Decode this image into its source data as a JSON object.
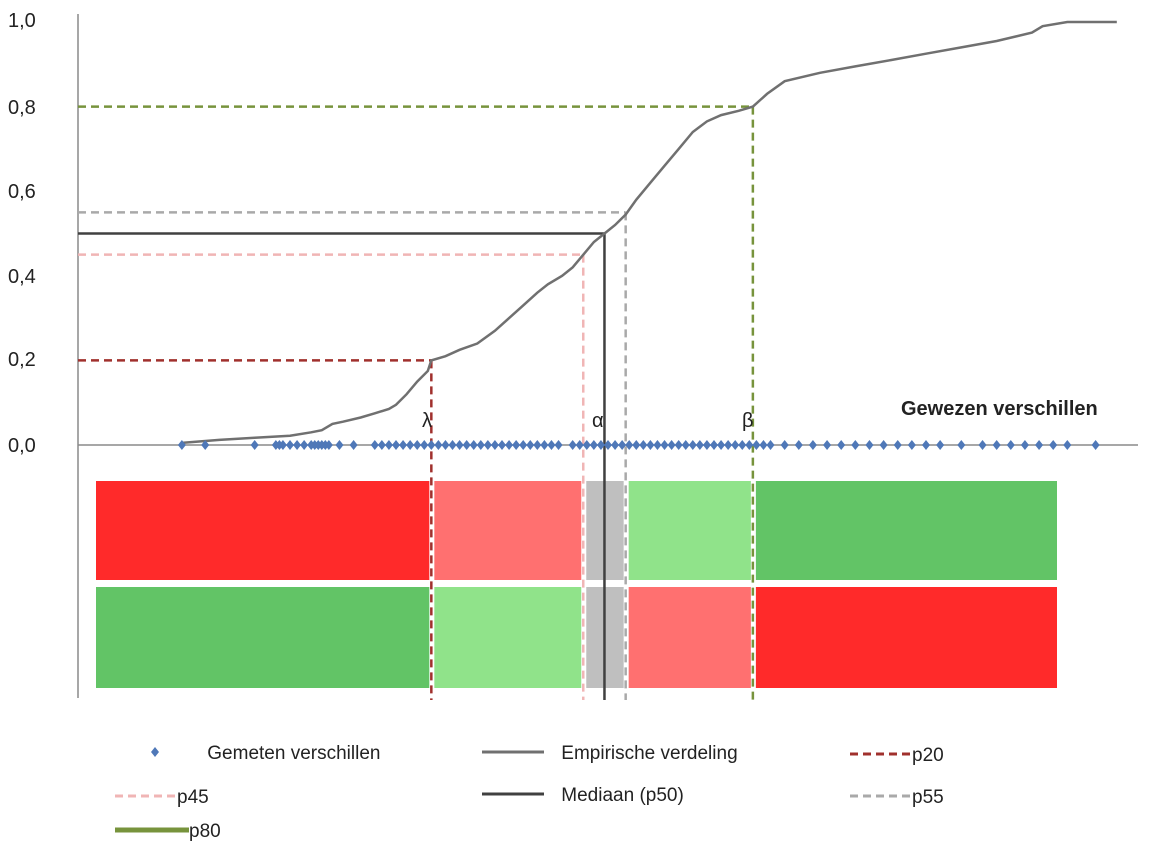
{
  "chart_data": {
    "type": "line",
    "x_axis_title": "Gewezen verschillen",
    "y_ticks": [
      "1,0",
      "0,8",
      "0,6",
      "0,4",
      "0,2",
      "0,0"
    ],
    "ylim": [
      0,
      1
    ],
    "xlim": [
      -0.5,
      1.0
    ],
    "greek_labels": {
      "lambda": "λ",
      "alpha": "α",
      "beta": "β"
    },
    "series": [
      {
        "name": "Empirische verdeling",
        "color": "#707070",
        "points": [
          [
            -0.353,
            0.005
          ],
          [
            -0.3,
            0.012
          ],
          [
            -0.25,
            0.017
          ],
          [
            -0.2,
            0.022
          ],
          [
            -0.17,
            0.03
          ],
          [
            -0.155,
            0.035
          ],
          [
            -0.14,
            0.05
          ],
          [
            -0.125,
            0.055
          ],
          [
            -0.1,
            0.065
          ],
          [
            -0.08,
            0.075
          ],
          [
            -0.06,
            0.085
          ],
          [
            -0.05,
            0.095
          ],
          [
            -0.035,
            0.12
          ],
          [
            -0.02,
            0.15
          ],
          [
            -0.005,
            0.175
          ],
          [
            0.0,
            0.2
          ],
          [
            0.02,
            0.21
          ],
          [
            0.04,
            0.225
          ],
          [
            0.065,
            0.24
          ],
          [
            0.09,
            0.27
          ],
          [
            0.11,
            0.3
          ],
          [
            0.13,
            0.33
          ],
          [
            0.15,
            0.36
          ],
          [
            0.165,
            0.38
          ],
          [
            0.185,
            0.4
          ],
          [
            0.2,
            0.42
          ],
          [
            0.215,
            0.45
          ],
          [
            0.23,
            0.48
          ],
          [
            0.245,
            0.5
          ],
          [
            0.26,
            0.52
          ],
          [
            0.275,
            0.545
          ],
          [
            0.29,
            0.58
          ],
          [
            0.31,
            0.62
          ],
          [
            0.33,
            0.66
          ],
          [
            0.35,
            0.7
          ],
          [
            0.37,
            0.74
          ],
          [
            0.39,
            0.765
          ],
          [
            0.41,
            0.78
          ],
          [
            0.435,
            0.79
          ],
          [
            0.455,
            0.8
          ],
          [
            0.475,
            0.83
          ],
          [
            0.5,
            0.86
          ],
          [
            0.55,
            0.88
          ],
          [
            0.6,
            0.895
          ],
          [
            0.65,
            0.91
          ],
          [
            0.7,
            0.925
          ],
          [
            0.75,
            0.94
          ],
          [
            0.8,
            0.955
          ],
          [
            0.85,
            0.975
          ],
          [
            0.865,
            0.99
          ],
          [
            0.9,
            1.0
          ],
          [
            0.97,
            1.0
          ]
        ]
      },
      {
        "name": "Gemeten  verschillen",
        "color": "#4f78b8",
        "x": [
          -0.353,
          -0.32,
          -0.25,
          -0.22,
          -0.215,
          -0.21,
          -0.2,
          -0.19,
          -0.18,
          -0.17,
          -0.165,
          -0.16,
          -0.155,
          -0.15,
          -0.145,
          -0.13,
          -0.11,
          -0.08,
          -0.07,
          -0.06,
          -0.05,
          -0.04,
          -0.03,
          -0.02,
          -0.01,
          0.0,
          0.01,
          0.02,
          0.03,
          0.04,
          0.05,
          0.06,
          0.07,
          0.08,
          0.09,
          0.1,
          0.11,
          0.12,
          0.13,
          0.14,
          0.15,
          0.16,
          0.17,
          0.18,
          0.2,
          0.21,
          0.22,
          0.23,
          0.24,
          0.25,
          0.26,
          0.27,
          0.28,
          0.29,
          0.3,
          0.31,
          0.32,
          0.33,
          0.34,
          0.35,
          0.36,
          0.37,
          0.38,
          0.39,
          0.4,
          0.41,
          0.42,
          0.43,
          0.44,
          0.45,
          0.46,
          0.47,
          0.48,
          0.5,
          0.52,
          0.54,
          0.56,
          0.58,
          0.6,
          0.62,
          0.64,
          0.66,
          0.68,
          0.7,
          0.72,
          0.75,
          0.78,
          0.8,
          0.82,
          0.84,
          0.86,
          0.88,
          0.9,
          0.94
        ]
      }
    ],
    "percentiles": [
      {
        "name": "p20",
        "p": 0.2,
        "x": 0.0,
        "color": "#a0302d"
      },
      {
        "name": "p45",
        "p": 0.45,
        "x": 0.215,
        "color": "#f0b5b5"
      },
      {
        "name": "Mediaan (p50)",
        "p": 0.5,
        "x": 0.245,
        "color": "#404040"
      },
      {
        "name": "p55",
        "p": 0.55,
        "x": 0.275,
        "color": "#a9a9a9"
      },
      {
        "name": "p80",
        "p": 0.8,
        "x": 0.455,
        "color": "#77933c"
      }
    ],
    "bands": {
      "top": [
        {
          "from": -0.5,
          "to": 0.0,
          "color": "#ff2a2a"
        },
        {
          "from": 0.0,
          "to": 0.215,
          "color": "#ff7070"
        },
        {
          "from": 0.215,
          "to": 0.275,
          "color": "#bfbfbf"
        },
        {
          "from": 0.275,
          "to": 0.455,
          "color": "#90e38a"
        },
        {
          "from": 0.455,
          "to": 0.8,
          "color": "#62c466"
        }
      ],
      "bottom": [
        {
          "from": -0.5,
          "to": 0.0,
          "color": "#62c466"
        },
        {
          "from": 0.0,
          "to": 0.215,
          "color": "#90e38a"
        },
        {
          "from": 0.215,
          "to": 0.275,
          "color": "#bfbfbf"
        },
        {
          "from": 0.275,
          "to": 0.455,
          "color": "#ff7070"
        },
        {
          "from": 0.455,
          "to": 0.8,
          "color": "#ff2a2a"
        }
      ]
    },
    "legend": {
      "items": [
        "Gemeten  verschillen",
        "Empirische verdeling",
        "p20",
        "p45",
        "Mediaan (p50)",
        "p55",
        "p80"
      ]
    }
  }
}
